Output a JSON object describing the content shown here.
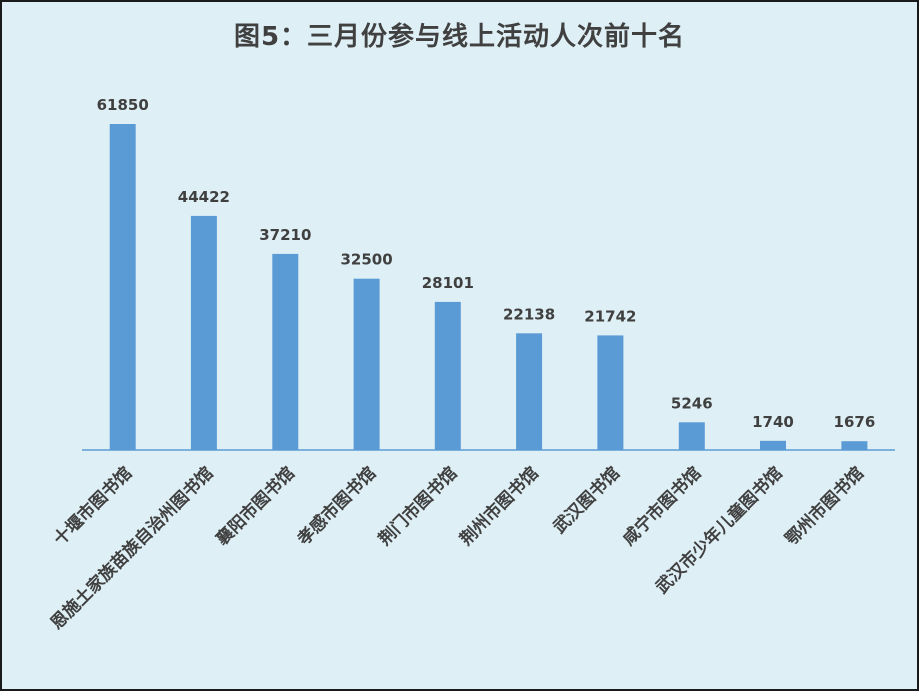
{
  "chart_data": {
    "type": "bar",
    "title": "图5：三月份参与线上活动人次前十名",
    "xlabel": "",
    "ylabel": "",
    "categories": [
      "十堰市图书馆",
      "恩施土家族苗族自治州图书馆",
      "襄阳市图书馆",
      "孝感市图书馆",
      "荆门市图书馆",
      "荆州市图书馆",
      "武汉图书馆",
      "咸宁市图书馆",
      "武汉市少年儿童图书馆",
      "鄂州市图书馆"
    ],
    "values": [
      61850,
      44422,
      37210,
      32500,
      28101,
      22138,
      21742,
      5246,
      1740,
      1676
    ],
    "ylim": [
      0,
      61850
    ],
    "grid": false,
    "legend": "none",
    "data_labels": true,
    "colors": {
      "bar": "#5b9bd5",
      "axis": "#5b9bd5",
      "text": "#404040",
      "background": "#deeff5",
      "border": "#1a1a1a"
    }
  }
}
